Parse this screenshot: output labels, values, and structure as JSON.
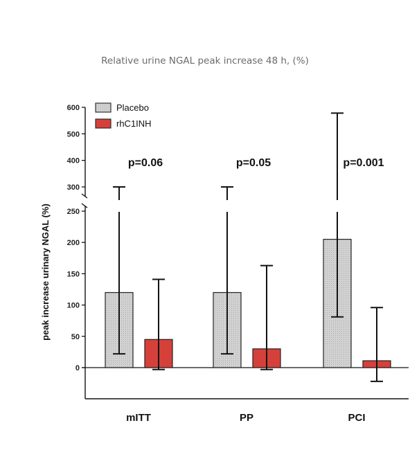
{
  "chart_data": {
    "type": "bar",
    "title": "Relative urine NGAL peak increase 48 h, (%)",
    "ylabel": "peak increase urinary NGAL (%)",
    "xlabel": "",
    "categories": [
      "mITT",
      "PP",
      "PCI"
    ],
    "series": [
      {
        "name": "Placebo",
        "values": [
          120,
          120,
          205
        ],
        "err_low": [
          22,
          22,
          81
        ],
        "err_high": [
          300,
          300,
          578
        ],
        "color": "#cfcfcf"
      },
      {
        "name": "rhC1INH",
        "values": [
          45,
          30,
          11
        ],
        "err_low": [
          -3,
          -3,
          -22
        ],
        "err_high": [
          141,
          163,
          96
        ],
        "color": "#d6403a"
      }
    ],
    "p_values": [
      "p=0.06",
      "p=0.05",
      "p=0.001"
    ],
    "axis_break": [
      250,
      275
    ],
    "yticks_lower": [
      0,
      50,
      100,
      150,
      200,
      250
    ],
    "yticks_upper": [
      300,
      400,
      500,
      600
    ],
    "ylim": [
      -50,
      600
    ],
    "legend_position": "top-left",
    "grid": false
  }
}
